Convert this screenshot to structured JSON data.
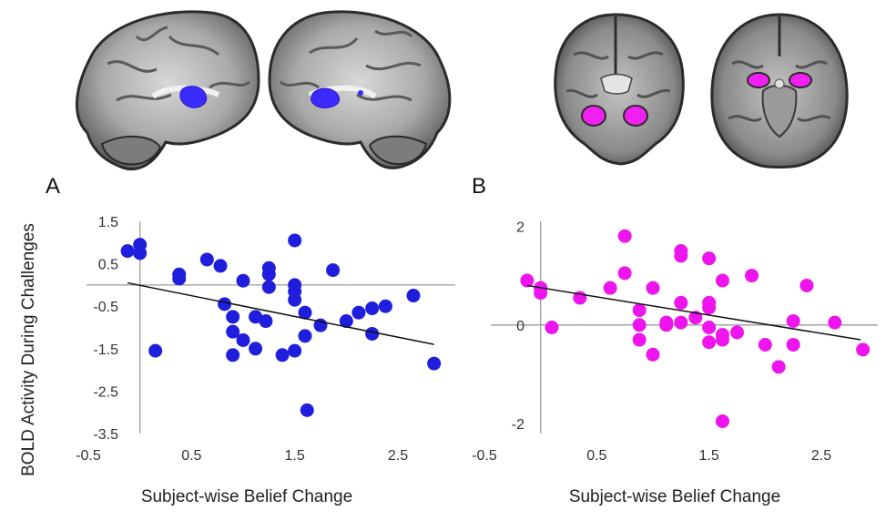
{
  "y_axis_label": "BOLD Activity During Challenges",
  "colors": {
    "panel_a": "#1e1edc",
    "panel_b": "#ee14ee",
    "brain_blob_a": "#3b2bff",
    "brain_blob_b": "#f020f0",
    "axis": "#9a9a9a",
    "trendline": "#111111"
  },
  "brains": [
    {
      "view": "sagittal-left",
      "highlight": "insula",
      "color": "#3b2bff"
    },
    {
      "view": "sagittal-right",
      "highlight": "insula",
      "color": "#3b2bff"
    },
    {
      "view": "coronal",
      "highlight": "amygdala",
      "color": "#f020f0"
    },
    {
      "view": "axial",
      "highlight": "amygdala",
      "color": "#f020f0"
    }
  ],
  "chart_data": [
    {
      "panel_label": "A",
      "type": "scatter",
      "xlabel": "Subject-wise Belief Change",
      "ylabel": "BOLD Activity During Challenges",
      "xlim": [
        -0.5,
        2.9
      ],
      "ylim": [
        -3.5,
        1.5
      ],
      "x_ticks": [
        "-0.5",
        "0.5",
        "1.5",
        "2.5"
      ],
      "y_ticks": [
        "1.5",
        "0.5",
        "-0.5",
        "-1.5",
        "-2.5",
        "-3.5"
      ],
      "trendline": {
        "x": [
          -0.12,
          2.85
        ],
        "y": [
          0.05,
          -1.4
        ]
      },
      "points": [
        {
          "x": -0.12,
          "y": 0.8
        },
        {
          "x": 0.0,
          "y": 0.95
        },
        {
          "x": 0.0,
          "y": 0.75
        },
        {
          "x": 0.15,
          "y": -1.55
        },
        {
          "x": 0.38,
          "y": 0.25
        },
        {
          "x": 0.38,
          "y": 0.15
        },
        {
          "x": 0.65,
          "y": 0.6
        },
        {
          "x": 0.78,
          "y": 0.45
        },
        {
          "x": 0.82,
          "y": -0.45
        },
        {
          "x": 0.9,
          "y": -0.75
        },
        {
          "x": 0.9,
          "y": -1.1
        },
        {
          "x": 0.9,
          "y": -1.65
        },
        {
          "x": 1.0,
          "y": 0.1
        },
        {
          "x": 1.0,
          "y": -1.3
        },
        {
          "x": 1.12,
          "y": -0.75
        },
        {
          "x": 1.12,
          "y": -1.5
        },
        {
          "x": 1.22,
          "y": -0.85
        },
        {
          "x": 1.25,
          "y": 0.4
        },
        {
          "x": 1.25,
          "y": 0.25
        },
        {
          "x": 1.25,
          "y": -0.05
        },
        {
          "x": 1.38,
          "y": -1.65
        },
        {
          "x": 1.5,
          "y": 1.05
        },
        {
          "x": 1.5,
          "y": 0.0
        },
        {
          "x": 1.5,
          "y": -0.15
        },
        {
          "x": 1.5,
          "y": -0.35
        },
        {
          "x": 1.5,
          "y": -1.55
        },
        {
          "x": 1.6,
          "y": -0.65
        },
        {
          "x": 1.6,
          "y": -1.2
        },
        {
          "x": 1.62,
          "y": -2.95
        },
        {
          "x": 1.75,
          "y": -0.95
        },
        {
          "x": 1.87,
          "y": 0.35
        },
        {
          "x": 2.0,
          "y": -0.85
        },
        {
          "x": 2.12,
          "y": -0.65
        },
        {
          "x": 2.25,
          "y": -0.55
        },
        {
          "x": 2.25,
          "y": -1.15
        },
        {
          "x": 2.38,
          "y": -0.5
        },
        {
          "x": 2.65,
          "y": -0.25
        },
        {
          "x": 2.85,
          "y": -1.85
        }
      ]
    },
    {
      "panel_label": "B",
      "type": "scatter",
      "xlabel": "Subject-wise Belief Change",
      "ylabel": "",
      "xlim": [
        -0.5,
        2.9
      ],
      "ylim": [
        -2.2,
        2.1
      ],
      "x_ticks": [
        "-0.5",
        "0.5",
        "1.5",
        "2.5"
      ],
      "y_ticks": [
        "2",
        "0",
        "-2"
      ],
      "trendline": {
        "x": [
          -0.12,
          2.85
        ],
        "y": [
          0.8,
          -0.3
        ]
      },
      "points": [
        {
          "x": -0.12,
          "y": 0.9
        },
        {
          "x": 0.0,
          "y": 0.75
        },
        {
          "x": 0.0,
          "y": 0.65
        },
        {
          "x": 0.1,
          "y": -0.05
        },
        {
          "x": 0.35,
          "y": 0.55
        },
        {
          "x": 0.62,
          "y": 0.75
        },
        {
          "x": 0.75,
          "y": 1.8
        },
        {
          "x": 0.75,
          "y": 1.05
        },
        {
          "x": 0.88,
          "y": 0.3
        },
        {
          "x": 0.88,
          "y": 0.0
        },
        {
          "x": 0.88,
          "y": -0.3
        },
        {
          "x": 1.0,
          "y": 0.75
        },
        {
          "x": 1.0,
          "y": -0.6
        },
        {
          "x": 1.12,
          "y": 0.05
        },
        {
          "x": 1.12,
          "y": 0.0
        },
        {
          "x": 1.25,
          "y": 1.5
        },
        {
          "x": 1.25,
          "y": 1.4
        },
        {
          "x": 1.25,
          "y": 0.45
        },
        {
          "x": 1.25,
          "y": 0.05
        },
        {
          "x": 1.38,
          "y": 0.15
        },
        {
          "x": 1.5,
          "y": 1.35
        },
        {
          "x": 1.5,
          "y": 0.45
        },
        {
          "x": 1.5,
          "y": 0.35
        },
        {
          "x": 1.5,
          "y": -0.05
        },
        {
          "x": 1.5,
          "y": -0.35
        },
        {
          "x": 1.62,
          "y": 0.9
        },
        {
          "x": 1.62,
          "y": -0.2
        },
        {
          "x": 1.62,
          "y": -0.3
        },
        {
          "x": 1.62,
          "y": -1.95
        },
        {
          "x": 1.75,
          "y": -0.15
        },
        {
          "x": 1.88,
          "y": 1.0
        },
        {
          "x": 2.0,
          "y": -0.4
        },
        {
          "x": 2.12,
          "y": -0.85
        },
        {
          "x": 2.25,
          "y": 0.08
        },
        {
          "x": 2.25,
          "y": -0.4
        },
        {
          "x": 2.37,
          "y": 0.8
        },
        {
          "x": 2.62,
          "y": 0.05
        },
        {
          "x": 2.87,
          "y": -0.5
        }
      ]
    }
  ]
}
